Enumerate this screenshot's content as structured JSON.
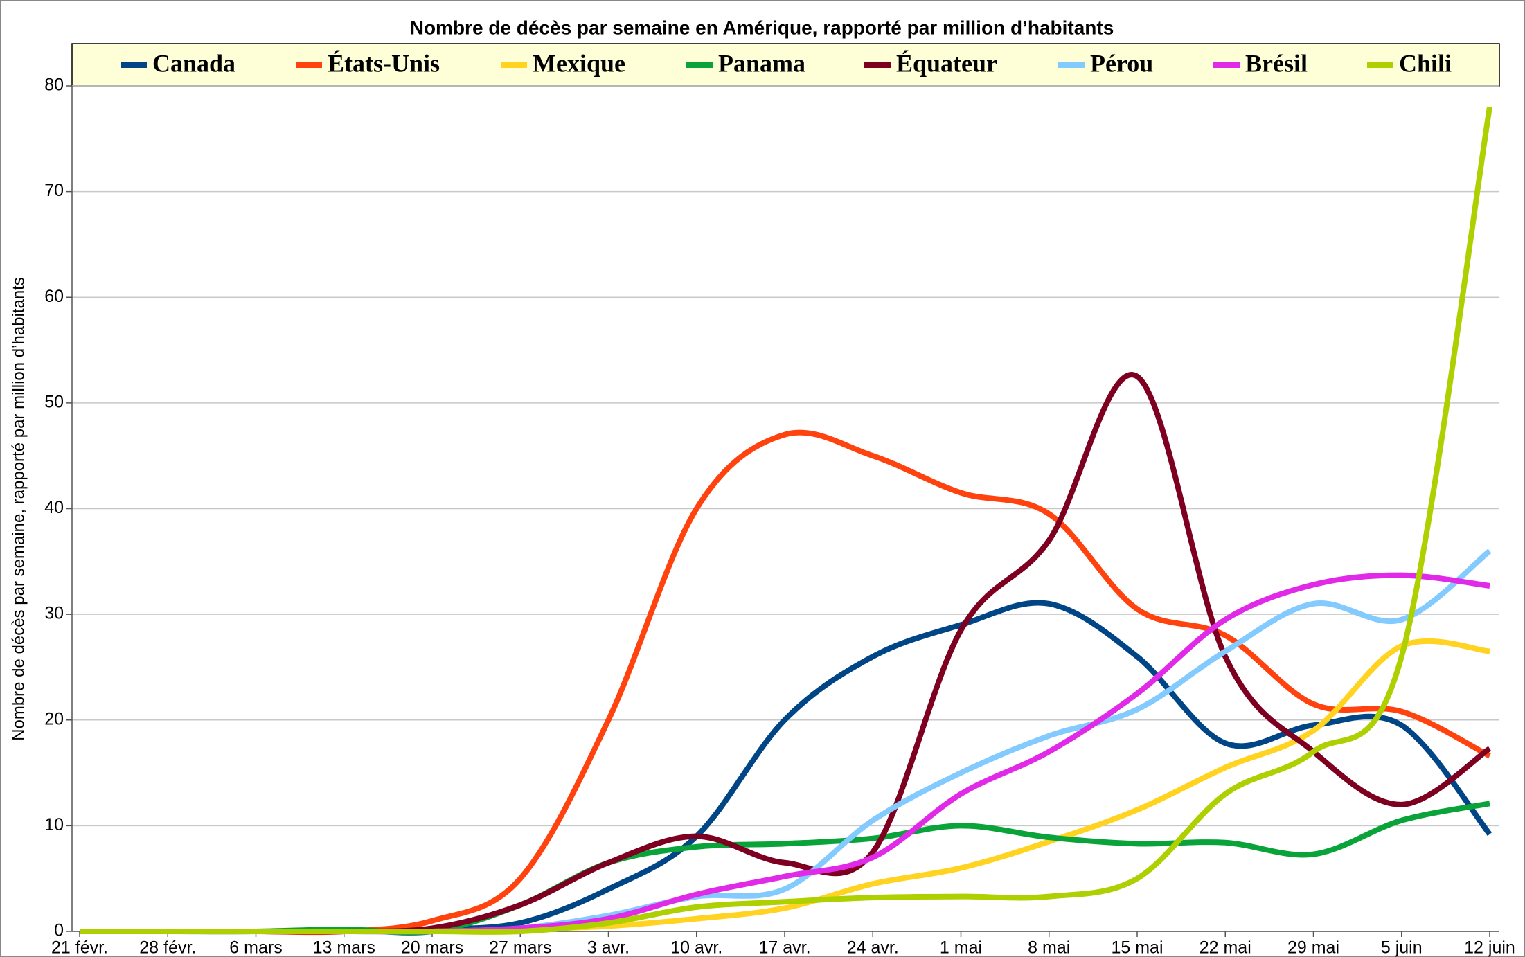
{
  "chart_data": {
    "type": "line",
    "title": "Nombre de décès par semaine en Amérique, rapporté par million d’habitants",
    "ylabel": "Nombre de décès par semaine, rapporté par million d’habitants",
    "categories": [
      "21 févr.",
      "28 févr.",
      "6 mars",
      "13 mars",
      "20 mars",
      "27 mars",
      "3 avr.",
      "10 avr.",
      "17 avr.",
      "24 avr.",
      "1 mai",
      "8 mai",
      "15 mai",
      "22 mai",
      "29 mai",
      "5 juin",
      "12 juin"
    ],
    "ylim": [
      0,
      80
    ],
    "yticks": [
      0,
      10,
      20,
      30,
      40,
      50,
      60,
      70,
      80
    ],
    "grid": true,
    "legend": "top",
    "series": [
      {
        "name": "Canada",
        "color": "#004586",
        "values": [
          0,
          0,
          0,
          0,
          0.2,
          0.8,
          4,
          9,
          20,
          26,
          29,
          31,
          26,
          17.8,
          19.5,
          19.5,
          9.2
        ]
      },
      {
        "name": "États-Unis",
        "color": "#ff420e",
        "values": [
          0,
          0,
          0,
          0,
          1,
          5,
          20,
          40,
          47,
          45,
          41.5,
          39.5,
          30.5,
          28,
          21.5,
          20.8,
          16.6
        ]
      },
      {
        "name": "Mexique",
        "color": "#ffd320",
        "values": [
          0,
          0,
          0,
          0,
          0,
          0.2,
          0.5,
          1.2,
          2.2,
          4.5,
          6,
          8.5,
          11.5,
          15.5,
          19,
          27,
          26.5
        ]
      },
      {
        "name": "Panama",
        "color": "#0aa33a",
        "values": [
          0,
          0,
          0,
          0.2,
          0,
          2.5,
          6.5,
          8,
          8.3,
          8.8,
          10,
          8.9,
          8.3,
          8.4,
          7.3,
          10.5,
          12.1
        ]
      },
      {
        "name": "Équateur",
        "color": "#7e0021",
        "values": [
          0,
          0,
          0,
          0,
          0.3,
          2.5,
          6.5,
          9,
          6.5,
          7.5,
          28.5,
          37,
          52.5,
          26,
          17,
          12,
          17.3
        ]
      },
      {
        "name": "Pérou",
        "color": "#83caff",
        "values": [
          0,
          0,
          0,
          0,
          0,
          0.3,
          1.5,
          3.3,
          4,
          10.5,
          15,
          18.5,
          21,
          26.5,
          31,
          29.5,
          36
        ]
      },
      {
        "name": "Brésil",
        "color": "#e12ae8",
        "values": [
          0,
          0,
          0,
          0,
          0,
          0.3,
          1.2,
          3.5,
          5.2,
          7,
          13,
          17,
          22.5,
          29.5,
          32.8,
          33.7,
          32.7
        ]
      },
      {
        "name": "Chili",
        "color": "#aecf00",
        "values": [
          0,
          0,
          0,
          0,
          0,
          0,
          0.8,
          2.3,
          2.8,
          3.2,
          3.3,
          3.3,
          5,
          13,
          17,
          26,
          78
        ]
      }
    ]
  }
}
